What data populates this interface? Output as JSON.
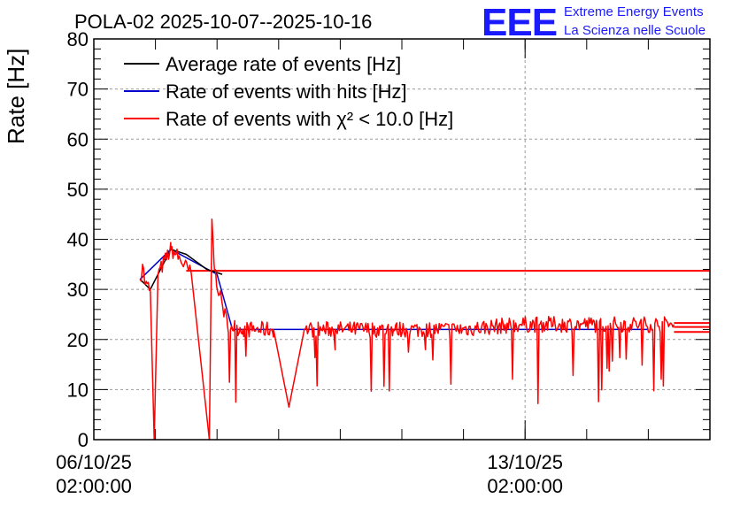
{
  "chart_data": {
    "type": "line",
    "title": "POLA-02 2025-10-07--2025-10-16",
    "ylabel": "Rate [Hz]",
    "xlabel": "",
    "ylim": [
      0,
      80
    ],
    "yticks": [
      0,
      10,
      20,
      30,
      40,
      50,
      60,
      70,
      80
    ],
    "xlim": [
      "2025-10-06 02:00:00",
      "2025-10-16 02:00:00"
    ],
    "xticks": [
      {
        "label_date": "06/10/25",
        "label_time": "02:00:00",
        "value": "2025-10-06 02:00:00"
      },
      {
        "label_date": "13/10/25",
        "label_time": "02:00:00",
        "value": "2025-10-13 02:00:00"
      }
    ],
    "grid": true,
    "legend_position": "top-left",
    "series": [
      {
        "name": "Average rate of events [Hz]",
        "color": "#000000",
        "points": [
          [
            "2025-10-06 20:00",
            32
          ],
          [
            "2025-10-07 00:00",
            30
          ],
          [
            "2025-10-07 08:00",
            38
          ],
          [
            "2025-10-07 14:00",
            37
          ],
          [
            "2025-10-07 22:00",
            34
          ],
          [
            "2025-10-08 04:00",
            33
          ]
        ]
      },
      {
        "name": "Rate of events with hits [Hz]",
        "color": "#0000cc",
        "points": [
          [
            "2025-10-06 20:00",
            32
          ],
          [
            "2025-10-07 08:00",
            38
          ],
          [
            "2025-10-08 02:00",
            33
          ],
          [
            "2025-10-08 08:00",
            22
          ],
          [
            "2025-10-15 02:00",
            22
          ]
        ]
      },
      {
        "name": "Rate of events with χ² < 10.0 [Hz]",
        "color": "#ff0000",
        "points": [
          [
            "2025-10-06 20:00",
            32
          ],
          [
            "2025-10-06 21:00",
            35
          ],
          [
            "2025-10-06 22:00",
            31
          ],
          [
            "2025-10-07 00:00",
            30
          ],
          [
            "2025-10-07 01:30",
            0
          ],
          [
            "2025-10-07 03:00",
            33
          ],
          [
            "2025-10-07 08:00",
            38
          ],
          [
            "2025-10-07 10:00",
            37
          ],
          [
            "2025-10-07 16:00",
            33
          ],
          [
            "2025-10-07 23:00",
            0
          ],
          [
            "2025-10-08 00:00",
            44
          ],
          [
            "2025-10-08 01:00",
            34
          ],
          [
            "2025-10-08 03:00",
            29
          ],
          [
            "2025-10-08 06:00",
            23
          ],
          [
            "2025-10-08 12:00",
            22
          ],
          [
            "2025-10-09 00:00",
            22
          ],
          [
            "2025-10-09 06:00",
            6.5
          ],
          [
            "2025-10-09 12:00",
            22
          ],
          [
            "2025-10-10 00:00",
            22
          ],
          [
            "2025-10-11 00:00",
            22
          ],
          [
            "2025-10-12 00:00",
            22
          ],
          [
            "2025-10-13 00:00",
            23
          ],
          [
            "2025-10-14 00:00",
            23
          ],
          [
            "2025-10-15 00:00",
            23
          ],
          [
            "2025-10-15 12:00",
            23
          ]
        ]
      }
    ],
    "reference_lines": [
      {
        "color": "#ff0000",
        "y": 33.7,
        "from": "2025-10-07 14:00",
        "to": "2025-10-16 02:00"
      },
      {
        "color": "#ff0000",
        "y": 23.3,
        "from": "2025-10-15 12:00",
        "to": "2025-10-16 02:00"
      },
      {
        "color": "#ff0000",
        "y": 22.5,
        "from": "2025-10-15 12:00",
        "to": "2025-10-16 02:00"
      },
      {
        "color": "#ff0000",
        "y": 21.5,
        "from": "2025-10-15 12:00",
        "to": "2025-10-16 02:00"
      }
    ]
  },
  "logo": {
    "mark": "EEE",
    "line1": "Extreme Energy Events",
    "line2": "La Scienza nelle Scuole"
  },
  "colors": {
    "series_black": "#000000",
    "series_blue": "#0000cc",
    "series_red": "#ff0000",
    "logo_blue": "#1a1aff"
  }
}
